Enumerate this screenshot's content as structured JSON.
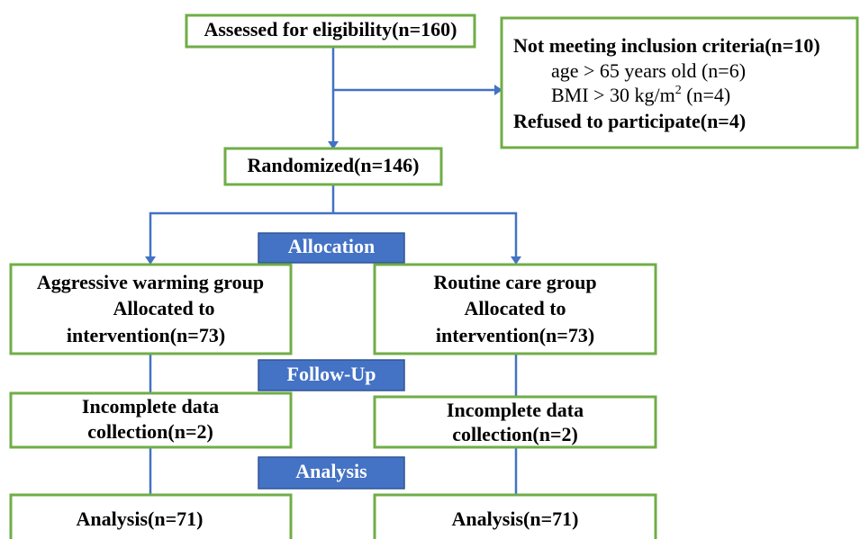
{
  "nodes": {
    "assessed": "Assessed for eligibility(n=160)",
    "excluded": {
      "not_meeting": "Not meeting inclusion criteria(n=10)",
      "age": "age > 65 years old (n=6)",
      "bmi": [
        "BMI > 30 kg/m",
        "2",
        " (n=4)"
      ],
      "refused": "Refused to participate(n=4)"
    },
    "randomized": "Randomized(n=146)",
    "stages": [
      "Allocation",
      "Follow-Up",
      "Analysis"
    ],
    "left": {
      "allocation": [
        "Aggressive warming group",
        "Allocated to",
        "intervention(n=73)"
      ],
      "followup": [
        "Incomplete data",
        "collection(n=2)"
      ],
      "analysis": "Analysis(n=71)"
    },
    "right": {
      "allocation": [
        "Routine care group",
        "Allocated to",
        "intervention(n=73)"
      ],
      "followup": [
        "Incomplete data",
        "collection(n=2)"
      ],
      "analysis": "Analysis(n=71)"
    }
  }
}
